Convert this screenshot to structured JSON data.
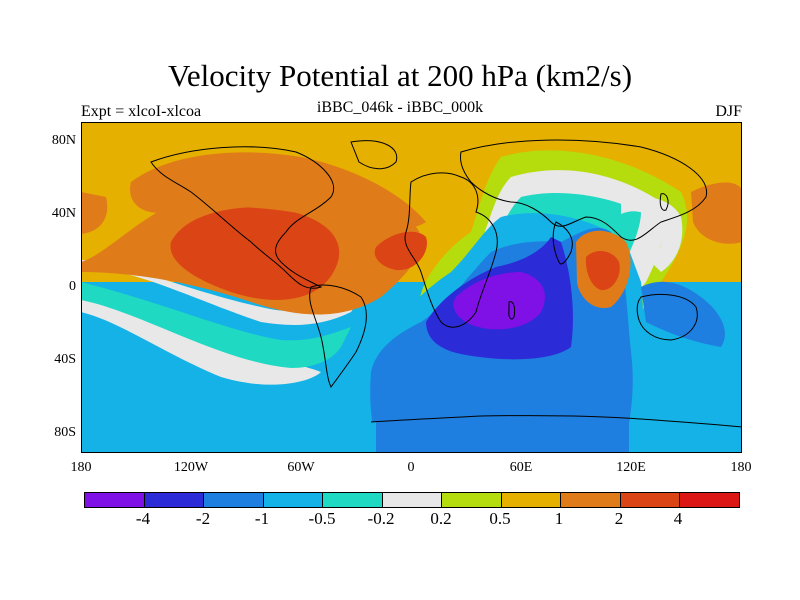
{
  "title": "Velocity Potential at 200 hPa (km2/s)",
  "subtitle_left": "Expt = xlcoI-xlcoa",
  "subtitle_center": "iBBC_046k - iBBC_000k",
  "subtitle_right": "DJF",
  "lat_labels": [
    "80N",
    "40N",
    "0",
    "40S",
    "80S"
  ],
  "lon_labels": [
    "180",
    "120W",
    "60W",
    "0",
    "60E",
    "120E",
    "180"
  ],
  "colorbar": {
    "colors": [
      "#7f10e6",
      "#2b2bd8",
      "#1f7fe0",
      "#14b2e6",
      "#1fd9c3",
      "#e8e8e8",
      "#b5dd0d",
      "#e6b000",
      "#e07b1a",
      "#db4515",
      "#dc1515"
    ],
    "labels": [
      "-4",
      "-2",
      "-1",
      "-0.5",
      "-0.2",
      "0.2",
      "0.5",
      "1",
      "2",
      "4"
    ]
  }
}
